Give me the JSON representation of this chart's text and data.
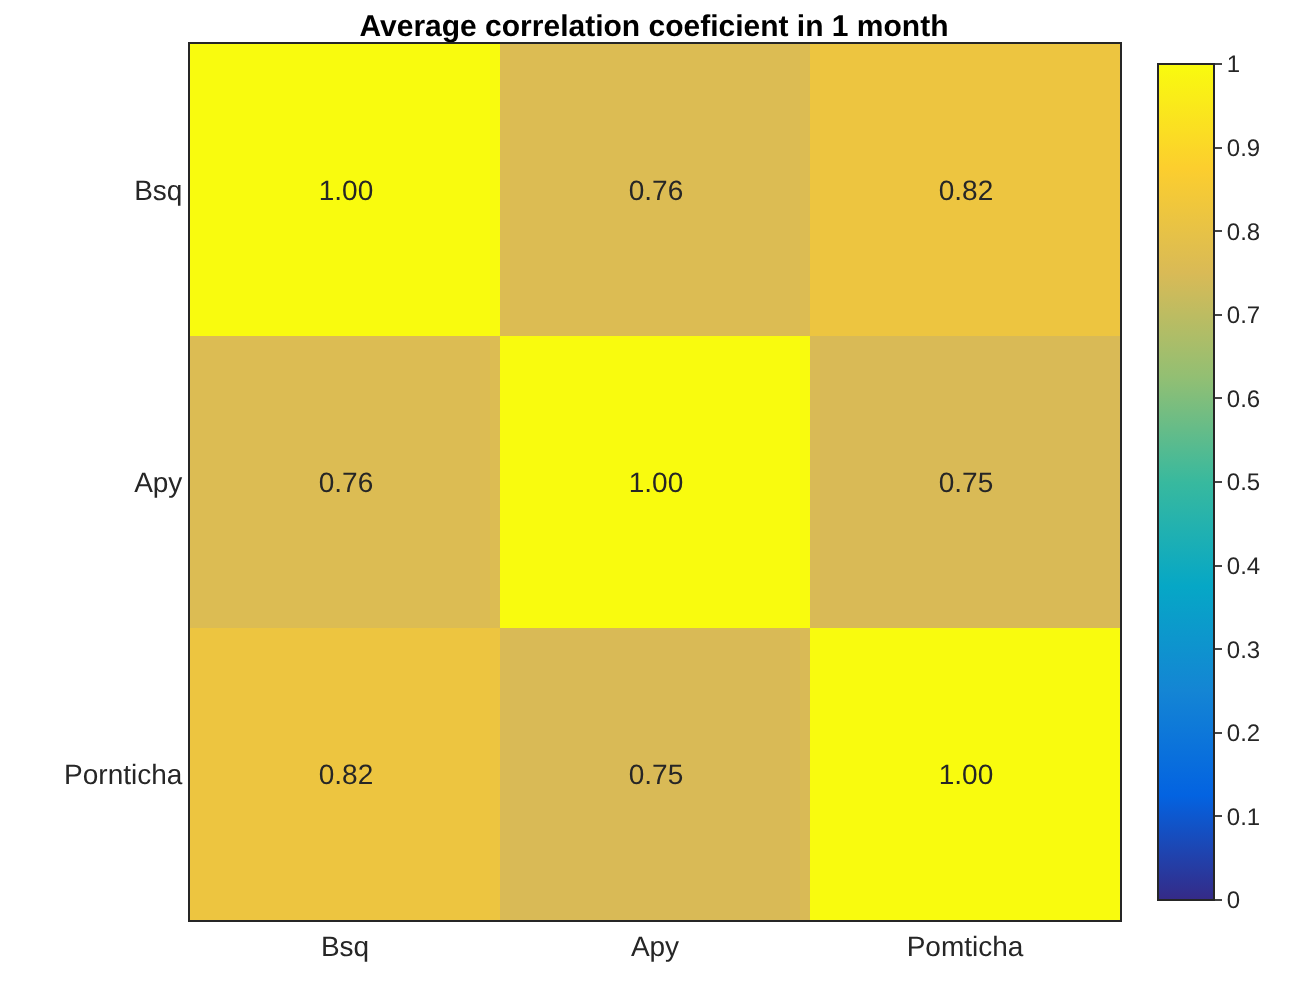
{
  "chart_data": {
    "type": "heatmap",
    "title": "Average correlation coeficient in 1 month",
    "categories": [
      "Bsq",
      "Apy",
      "Pomticha"
    ],
    "y_categories": [
      "Bsq",
      "Apy",
      "Pornticha"
    ],
    "cells": [
      [
        1.0,
        0.76,
        0.82
      ],
      [
        0.76,
        1.0,
        0.75
      ],
      [
        0.82,
        0.75,
        1.0
      ]
    ],
    "cell_labels": [
      [
        "1.00",
        "0.76",
        "0.82"
      ],
      [
        "0.76",
        "1.00",
        "0.75"
      ],
      [
        "0.82",
        "0.75",
        "1.00"
      ]
    ],
    "clim": [
      0,
      1
    ],
    "cticks": [
      0,
      0.1,
      0.2,
      0.3,
      0.4,
      0.5,
      0.6,
      0.7,
      0.8,
      0.9,
      1
    ]
  }
}
